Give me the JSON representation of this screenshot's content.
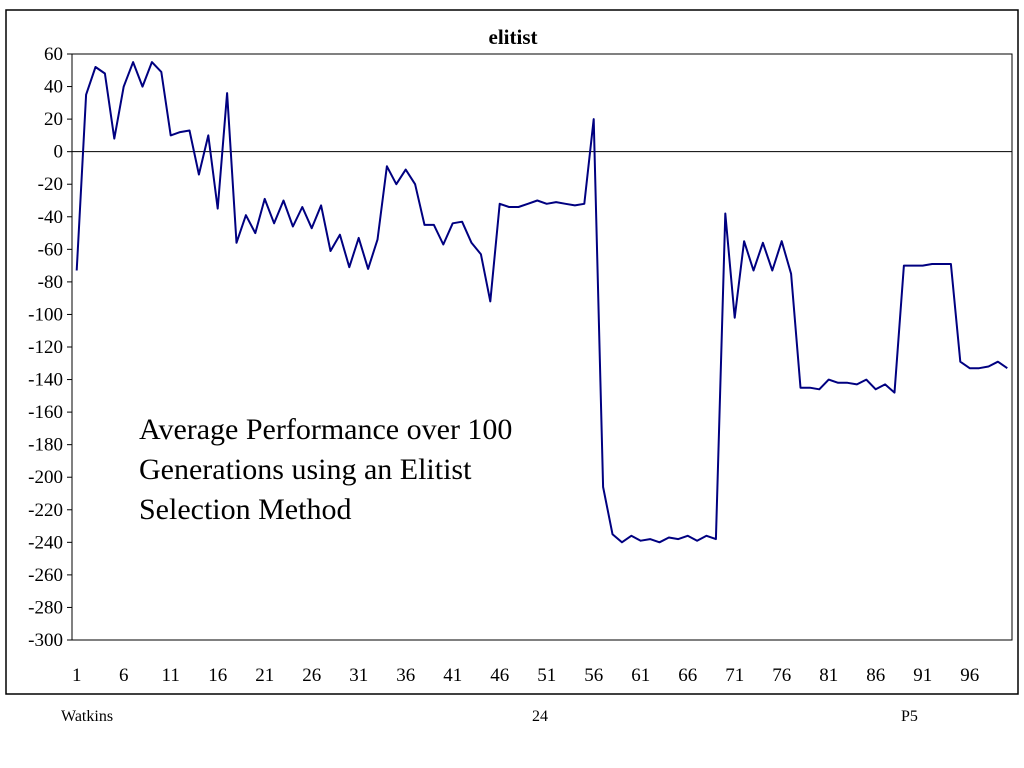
{
  "chart_data": {
    "type": "line",
    "title": "elitist",
    "xlabel": "",
    "ylabel": "",
    "ylim": [
      -300,
      60
    ],
    "ytick_step": 20,
    "xtick_labels": [
      "1",
      "6",
      "11",
      "16",
      "21",
      "26",
      "31",
      "36",
      "41",
      "46",
      "51",
      "56",
      "61",
      "66",
      "71",
      "76",
      "81",
      "86",
      "91",
      "96"
    ],
    "xtick_start": 1,
    "xtick_step": 5,
    "x_count": 100,
    "grid": false,
    "legend": "none",
    "colors": {
      "line": "#000080",
      "axis": "#000000",
      "frame": "#000000"
    },
    "series": [
      {
        "values": [
          -73,
          35,
          52,
          48,
          8,
          40,
          55,
          40,
          55,
          49,
          10,
          12,
          13,
          -14,
          10,
          -35,
          36,
          -56,
          -39,
          -50,
          -29,
          -44,
          -30,
          -46,
          -34,
          -47,
          -33,
          -61,
          -51,
          -71,
          -53,
          -72,
          -54,
          -9,
          -20,
          -11,
          -20,
          -45,
          -45,
          -57,
          -44,
          -43,
          -56,
          -63,
          -92,
          -32,
          -34,
          -34,
          -32,
          -30,
          -32,
          -31,
          -32,
          -33,
          -32,
          20,
          -206,
          -235,
          -240,
          -236,
          -239,
          -238,
          -240,
          -237,
          -238,
          -236,
          -239,
          -236,
          -238,
          -38,
          -102,
          -55,
          -73,
          -56,
          -73,
          -55,
          -75,
          -145,
          -145,
          -146,
          -140,
          -142,
          -142,
          -143,
          -140,
          -146,
          -143,
          -148,
          -70,
          -70,
          -70,
          -69,
          -69,
          -69,
          -129,
          -133,
          -133,
          -132,
          -129,
          -133
        ]
      }
    ]
  },
  "annotation": {
    "line1": "Average Performance over 100",
    "line2": "Generations using an Elitist",
    "line3": "Selection Method"
  },
  "footer": {
    "left": "Watkins",
    "center": "24",
    "right": "P5"
  }
}
